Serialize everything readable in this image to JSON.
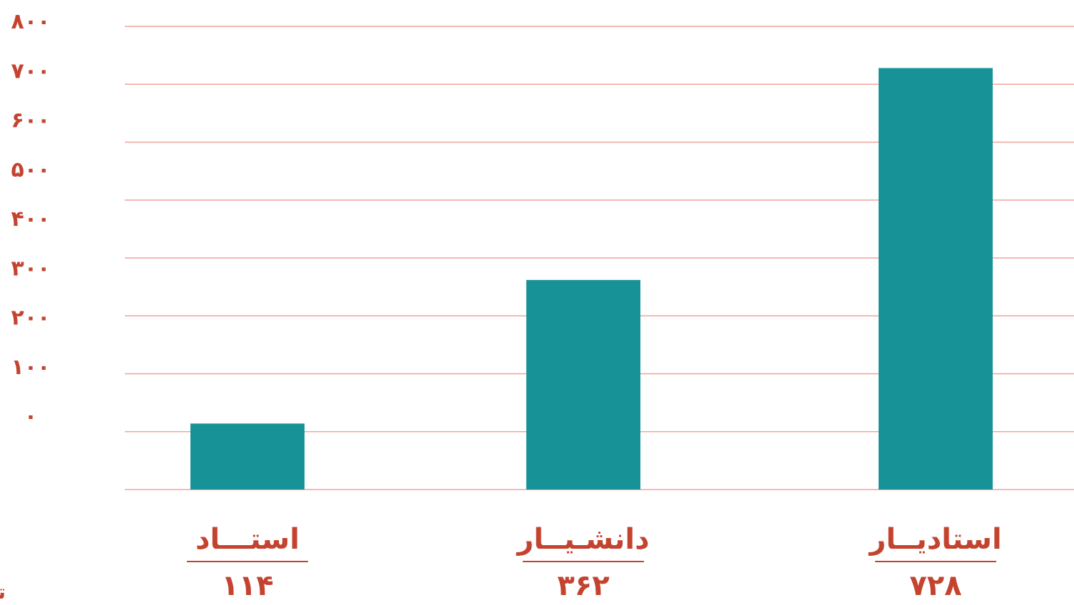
{
  "colors": {
    "bar": "#179398",
    "grid": "#f0a49a",
    "text": "#c4432f",
    "background": "#ffffff"
  },
  "chart_data": {
    "type": "bar",
    "categories": [
      "استـــاد",
      "دانشـیــار",
      "استادیــار"
    ],
    "values": [
      114,
      362,
      728
    ],
    "value_labels": [
      "۱۱۴",
      "۳۶۲",
      "۷۲۸"
    ],
    "y_tick_values": [
      0,
      100,
      200,
      300,
      400,
      500,
      600,
      700,
      800
    ],
    "y_tick_labels": [
      "۰",
      "۱۰۰",
      "۲۰۰",
      "۳۰۰",
      "۴۰۰",
      "۵۰۰",
      "۶۰۰",
      "۷۰۰",
      "۸۰۰"
    ],
    "ylim": [
      0,
      800
    ],
    "ylabel": "تعداد",
    "title": "",
    "xlabel": "",
    "grid": true,
    "legend": "none"
  }
}
